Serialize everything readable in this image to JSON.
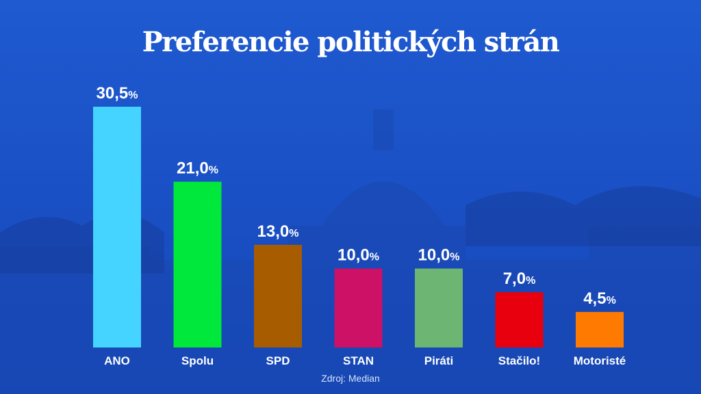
{
  "chart_data": {
    "type": "bar",
    "title": "Preferencie politických strán",
    "categories": [
      "ANO",
      "Spolu",
      "SPD",
      "STAN",
      "Piráti",
      "Stačilo!",
      "Motoristé"
    ],
    "values": [
      30.5,
      21.0,
      13.0,
      10.0,
      10.0,
      7.0,
      4.5
    ],
    "value_labels": [
      "30,5",
      "21,0",
      "13,0",
      "10,0",
      "10,0",
      "7,0",
      "4,5"
    ],
    "unit": "%",
    "colors": [
      "#45d4ff",
      "#00e83c",
      "#a85c00",
      "#cc1166",
      "#6db572",
      "#e8000e",
      "#ff7a00"
    ],
    "ylim": [
      0,
      30.5
    ],
    "xlabel": "",
    "ylabel": "",
    "source": "Zdroj: Median"
  }
}
